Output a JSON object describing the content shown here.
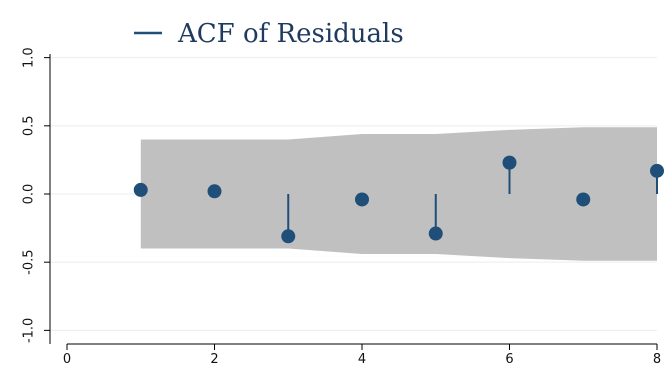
{
  "chart_data": {
    "type": "stem",
    "legend": [
      {
        "label": "ACF of Residuals",
        "color": "#1f4e79"
      }
    ],
    "legend_position": "top-center",
    "x": [
      1,
      2,
      3,
      4,
      5,
      6,
      7,
      8
    ],
    "values": [
      0.03,
      0.02,
      -0.31,
      -0.04,
      -0.29,
      0.23,
      -0.04,
      0.17
    ],
    "confidence_band": {
      "x": [
        1,
        2,
        3,
        4,
        5,
        6,
        7,
        8
      ],
      "upper": [
        0.4,
        0.4,
        0.4,
        0.44,
        0.44,
        0.47,
        0.49,
        0.49
      ],
      "lower": [
        -0.4,
        -0.4,
        -0.4,
        -0.44,
        -0.44,
        -0.47,
        -0.49,
        -0.49
      ],
      "color": "#c0c0c0"
    },
    "xlim": [
      0,
      8
    ],
    "ylim": [
      -1.1,
      1.1
    ],
    "xticks": [
      0,
      2,
      4,
      6,
      8
    ],
    "yticks": [
      -1.0,
      -0.5,
      0.0,
      0.5,
      1.0
    ],
    "xtick_labels": [
      "0",
      "2",
      "4",
      "6",
      "8"
    ],
    "ytick_labels": [
      "-1.0",
      "-0.5",
      "0.0",
      "0.5",
      "1.0"
    ],
    "grid": "horizontal",
    "colors": {
      "marker": "#1f4e79",
      "grid": "#e8eef2",
      "axis": "#000000"
    }
  }
}
